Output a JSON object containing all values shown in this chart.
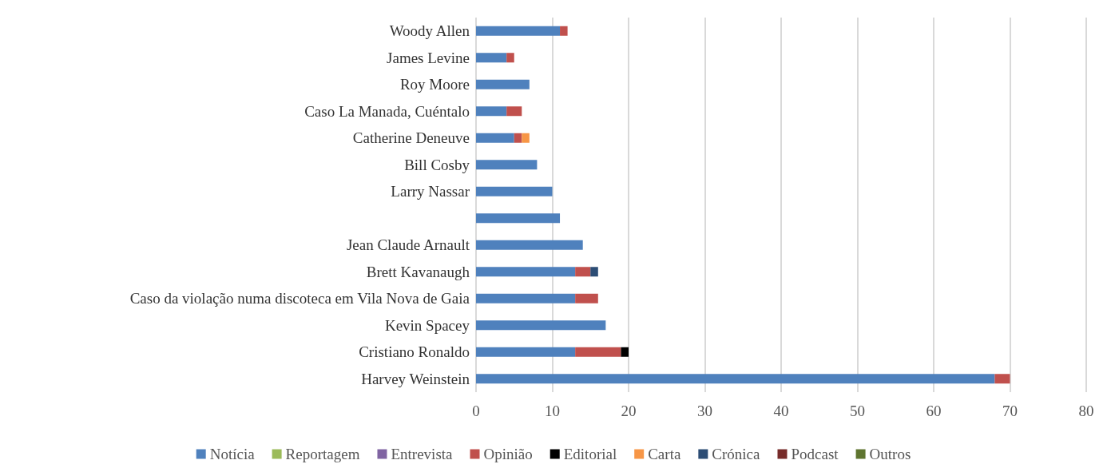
{
  "chart_data": {
    "type": "bar",
    "orientation": "horizontal",
    "stacked": true,
    "categories": [
      "Woody Allen",
      "James Levine",
      "Roy Moore",
      "Caso La Manada, Cuéntalo",
      "Catherine Deneuve",
      "Bill Cosby",
      "Larry Nassar",
      null,
      "Jean Claude Arnault",
      "Brett Kavanaugh",
      "Caso da violação numa discoteca em Vila Nova de Gaia",
      "Kevin Spacey",
      "Cristiano Ronaldo",
      "Harvey Weinstein"
    ],
    "series": [
      {
        "name": "Notícia",
        "color": "#4f81bd",
        "values": [
          11,
          4,
          7,
          4,
          5,
          8,
          10,
          11,
          14,
          13,
          13,
          17,
          13,
          68
        ]
      },
      {
        "name": "Reportagem",
        "color": "#9bbb59",
        "values": [
          null,
          null,
          null,
          null,
          null,
          null,
          null,
          null,
          null,
          null,
          null,
          null,
          null,
          null
        ]
      },
      {
        "name": "Entrevista",
        "color": "#8064a2",
        "values": [
          null,
          null,
          null,
          null,
          null,
          null,
          null,
          null,
          null,
          null,
          null,
          null,
          null,
          null
        ]
      },
      {
        "name": "Opinião",
        "color": "#c0504d",
        "values": [
          1,
          1,
          null,
          2,
          1,
          null,
          null,
          null,
          null,
          2,
          3,
          null,
          6,
          2
        ]
      },
      {
        "name": "Editorial",
        "color": "#000000",
        "values": [
          null,
          null,
          null,
          null,
          null,
          null,
          null,
          null,
          null,
          null,
          null,
          null,
          1,
          null
        ]
      },
      {
        "name": "Carta",
        "color": "#f79646",
        "values": [
          null,
          null,
          null,
          null,
          1,
          null,
          null,
          null,
          null,
          null,
          null,
          null,
          null,
          null
        ]
      },
      {
        "name": "Crónica",
        "color": "#2c4d75",
        "values": [
          null,
          null,
          null,
          null,
          null,
          null,
          null,
          null,
          null,
          1,
          null,
          null,
          null,
          null
        ]
      },
      {
        "name": "Podcast",
        "color": "#772c2a",
        "values": [
          null,
          null,
          null,
          null,
          null,
          null,
          null,
          null,
          null,
          null,
          null,
          null,
          null,
          null
        ]
      },
      {
        "name": "Outros",
        "color": "#5f7530",
        "values": [
          null,
          null,
          null,
          null,
          null,
          null,
          null,
          null,
          null,
          null,
          null,
          null,
          null,
          null
        ]
      }
    ],
    "xlim": [
      0,
      80
    ],
    "xticks": [
      0,
      10,
      20,
      30,
      40,
      50,
      60,
      70,
      80
    ],
    "grid": "x",
    "legend": "bottom"
  }
}
